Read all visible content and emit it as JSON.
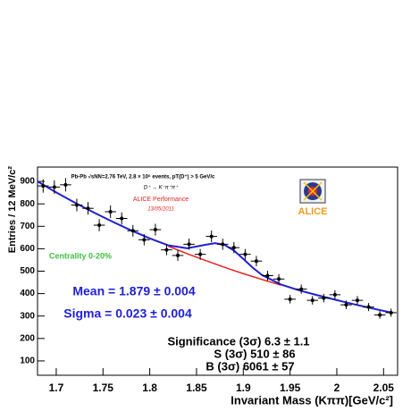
{
  "chart_data": {
    "type": "scatter",
    "header": "Pb-Pb √sNN=2.76 TeV, 2.8 × 10⁶ events, pT(D⁺) > 5 GeV/c",
    "decay": "D⁺ → K⁻π⁺π⁺",
    "performance": "ALICE Performance",
    "date": "13/05/2011",
    "logo": "ALICE",
    "centrality": "Centrality 0-20%",
    "mean": "Mean = 1.879 ± 0.004",
    "sigma": "Sigma = 0.023 ± 0.004",
    "significance": "Significance (3σ) 6.3 ± 1.1",
    "signal": "S (3σ) 510 ± 86",
    "bkg": "B (3σ) 6061 ± 57",
    "x_label": "Invariant Mass (Kππ)[GeV/c²]",
    "y_label": "Entries / 12 MeV/c²",
    "x": [
      1.686,
      1.698,
      1.71,
      1.722,
      1.734,
      1.746,
      1.758,
      1.77,
      1.782,
      1.794,
      1.806,
      1.818,
      1.83,
      1.842,
      1.854,
      1.866,
      1.878,
      1.89,
      1.902,
      1.914,
      1.926,
      1.938,
      1.95,
      1.962,
      1.974,
      1.986,
      1.998,
      2.01,
      2.022,
      2.034,
      2.046,
      2.058
    ],
    "values": [
      880,
      875,
      885,
      795,
      780,
      705,
      765,
      735,
      680,
      640,
      685,
      595,
      570,
      620,
      575,
      655,
      620,
      605,
      575,
      545,
      480,
      465,
      375,
      420,
      370,
      380,
      395,
      350,
      370,
      340,
      305,
      315
    ],
    "errors": [
      30,
      30,
      30,
      28,
      28,
      27,
      28,
      27,
      26,
      25,
      26,
      24,
      24,
      25,
      24,
      26,
      25,
      25,
      24,
      23,
      22,
      22,
      19,
      20,
      19,
      19,
      20,
      19,
      19,
      18,
      17,
      18
    ],
    "color": "#000000",
    "fit": {
      "color": "#1f1fd6",
      "x": [
        1.68,
        1.7,
        1.72,
        1.74,
        1.76,
        1.78,
        1.8,
        1.82,
        1.84,
        1.86,
        1.87,
        1.88,
        1.89,
        1.9,
        1.91,
        1.92,
        1.94,
        1.96,
        1.98,
        2.0,
        2.02,
        2.04,
        2.06
      ],
      "values": [
        900,
        851,
        805,
        762,
        721,
        682,
        646,
        615,
        602,
        618,
        625,
        617,
        592,
        555,
        516,
        483,
        441,
        414,
        392,
        371,
        351,
        332,
        314
      ]
    },
    "background": {
      "color": "#e8201f",
      "x": [
        1.82,
        1.84,
        1.86,
        1.88,
        1.9,
        1.92,
        1.94
      ],
      "values": [
        611,
        578,
        547,
        517,
        489,
        463,
        438
      ]
    },
    "xlim": [
      1.68,
      2.065
    ],
    "ylim": [
      36,
      964
    ],
    "xticks": [
      1.7,
      1.75,
      1.8,
      1.85,
      1.9,
      1.95,
      2,
      2.05
    ],
    "yticks": [
      100,
      200,
      300,
      400,
      500,
      600,
      700,
      800,
      900
    ]
  }
}
